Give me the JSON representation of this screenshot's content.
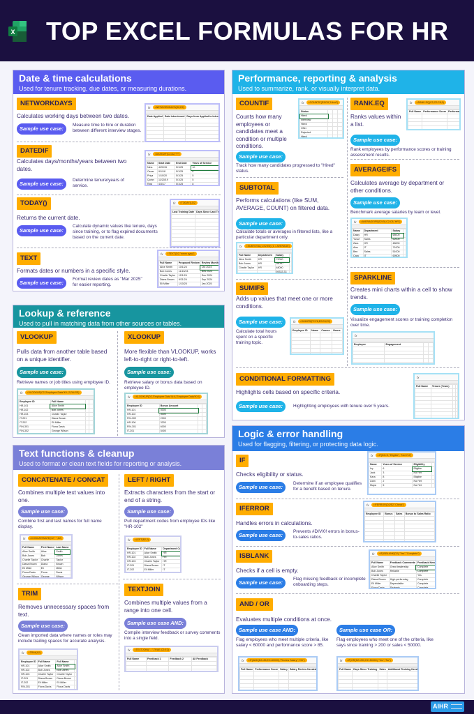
{
  "header": {
    "title": "TOP EXCEL FORMULAS FOR HR",
    "icon": "excel-logo-icon"
  },
  "footer": {
    "logo": "AIHR"
  },
  "colors": {
    "orange": "#ffad00",
    "navy": "#1b1040"
  },
  "sections": [
    {
      "title": "Date & time calculations",
      "subtitle": "Used for tenure tracking, due dates, or measuring durations.",
      "color": "#5a5cf0",
      "cards": [
        {
          "name": "NETWORKDAYS",
          "desc": "Calculates working days between two dates.",
          "pill": "Sample use case:",
          "use": "Measure time to hire or duration between different interview stages.",
          "sheet": {
            "formula": "=NETWORKDAYS(D2,E2)",
            "headers": [
              "Date Applied",
              "Date Interviewed",
              "Days from Applied to Interviewed"
            ],
            "rows": []
          }
        },
        {
          "name": "DATEDIF",
          "desc": "Calculates days/months/years between two dates.",
          "pill": "Sample use case:",
          "use": "Determine tenure/years of service.",
          "sheet": {
            "formula": "=DATEDIF(C2,D2,\"Y\")",
            "headers": [
              "Name",
              "Start Date",
              "End Date",
              "Years of Service"
            ],
            "rows": [
              [
                "Nina",
                "4/20/15",
                "5/1/25",
                "10"
              ],
              [
                "Oscar",
                "9/1/18",
                "5/1/25",
                "6"
              ],
              [
                "Priya",
                "1/10/20",
                "5/1/25",
                "5"
              ],
              [
                "Quinn",
                "11/20/19",
                "5/1/25",
                "5"
              ],
              [
                "Ravi",
                "4/3/17",
                "5/1/25",
                "8"
              ]
            ]
          }
        },
        {
          "name": "TODAY()",
          "desc": "Returns the current date.",
          "pill": "Sample use case:",
          "use": "Calculate dynamic values like tenure, days since training, or to flag expired documents based on the current date.",
          "sheet": {
            "formula": "=TODAY()-D2",
            "headers": [
              "Last Training Date",
              "Days Since Last Training"
            ],
            "rows": []
          }
        },
        {
          "name": "TEXT",
          "desc": "Formats dates or numbers in a specific style.",
          "pill": "Sample use case:",
          "use": "Format review dates as \"Mar 2025\" for easier reporting.",
          "sheet": {
            "formula": "=TEXT(D2,\"mmm yyyy\")",
            "headers": [
              "Full Name",
              "Proposed Review",
              "Review Month"
            ],
            "rows": [
              [
                "Alice Smith",
                "10/1/24",
                "Oct 2024"
              ],
              [
                "Bob Jones",
                "11/15/24",
                "Nov 2024"
              ],
              [
                "Charlie Taylor",
                "12/1/24",
                "Dec 2024"
              ],
              [
                "Diana Brown",
                "9/21/24",
                "Sep 2024"
              ],
              [
                "Eli Miller",
                "1/10/25",
                "Jan 2025"
              ],
              [
                "Fiona Davis",
                "8/30/24",
                "Aug 2024"
              ],
              [
                "George Wilson",
                "3/1/25",
                "Mar 2025"
              ]
            ]
          }
        }
      ]
    },
    {
      "title": "Lookup & reference",
      "subtitle": "Used to pull in matching data from other sources or tables.",
      "color": "#17959f",
      "cards": [
        {
          "name": "VLOOKUP",
          "desc": "Pulls data from another table based on a unique identifier.",
          "pill": "Sample use case:",
          "use": "Retrieve names or job titles using employee ID.",
          "sheet": {
            "formula": "=VLOOKUP(C2,'Employee Data'!K:L,2,FALSE)",
            "headers": [
              "Employee ID",
              "Full Name"
            ],
            "rows": [
              [
                "HR-101",
                "Alice Smith"
              ],
              [
                "HR-102",
                "Bob Jones"
              ],
              [
                "HR-103",
                "Charlie Taylor"
              ],
              [
                "IT-201",
                "Diana Brown"
              ],
              [
                "IT-202",
                "Eli Miller"
              ],
              [
                "FIN-301",
                "Fiona Davis"
              ],
              [
                "FIN-302",
                "George Wilson"
              ]
            ]
          }
        },
        {
          "name": "XLOOKUP",
          "desc": "More flexible than VLOOKUP, works left-to-right or right-to-left.",
          "pill": "Sample use case:",
          "use": "Retrieve salary or bonus data based on employee ID.",
          "sheet": {
            "formula": "=XLOOKUP(D2,'Employee Data'!A:A,'Employee Data'!K:K)",
            "headers": [
              "Employee ID",
              "Bonus Amount"
            ],
            "rows": [
              [
                "HR-101",
                "5000"
              ],
              [
                "HR-102",
                "3000"
              ],
              [
                "FIN-302",
                "2900"
              ],
              [
                "HR-106",
                "3200"
              ],
              [
                "FIN-301",
                "6000"
              ],
              [
                "IT-201",
                "5400"
              ],
              [
                "IT-202",
                "3100"
              ]
            ]
          }
        }
      ]
    },
    {
      "title": "Text functions & cleanup",
      "subtitle": "Used to format or clean text fields for reporting or analysis.",
      "color": "#7a80d8",
      "cards": [
        {
          "name": "CONCATENATE / CONCAT",
          "desc": "Combines multiple text values into one.",
          "pill": "Sample use case:",
          "use": "Combine first and last names for full name display.",
          "sheet": {
            "formula": "=CONCATENATE(C2,\" \",D2)",
            "headers": [
              "Full Name",
              "First Name",
              "Last Name"
            ],
            "rows": [
              [
                "Alice Smith",
                "Alice",
                "Smith"
              ],
              [
                "Bob Jones",
                "Bob",
                "Jones"
              ],
              [
                "Charlie Taylor",
                "Charlie",
                "Taylor"
              ],
              [
                "Diana Brown",
                "Diana",
                "Brown"
              ],
              [
                "Eli Miller",
                "Eli",
                "Miller"
              ],
              [
                "Fiona Davis",
                "Fiona",
                "Davis"
              ],
              [
                "George Wilson",
                "George",
                "Wilson"
              ]
            ]
          }
        },
        {
          "name": "LEFT / RIGHT",
          "desc": "Extracts characters from the start or end of a string.",
          "pill": "Sample use case:",
          "use": "Pull department codes from employee IDs like \"HR-102\"",
          "sheet": {
            "formula": "=LEFT(B2,2)",
            "headers": [
              "Employee ID",
              "Full Name",
              "Department Code"
            ],
            "rows": [
              [
                "HR-101",
                "Alice Smith",
                "HR"
              ],
              [
                "HR-102",
                "Bob Jones",
                "HR"
              ],
              [
                "HR-103",
                "Charlie Taylor",
                "HR"
              ],
              [
                "IT-201",
                "Diana Brown",
                "IT"
              ],
              [
                "IT-202",
                "Eli Miller",
                "IT"
              ],
              [
                "FIN-301",
                "Fiona Davis",
                "FI"
              ],
              [
                "FIN-302",
                "George Wilson",
                "FI"
              ]
            ]
          }
        },
        {
          "name": "TRIM",
          "desc": "Removes unnecessary spaces from text.",
          "pill": "Sample use case:",
          "use": "Clean imported data where names or roles may include trailing spaces for accurate analysis.",
          "sheet": {
            "formula": "=TRIM(A2)",
            "headers": [
              "Employee ID",
              "Full Name",
              "Full Name"
            ],
            "rows": [
              [
                "HR-101",
                "Alice Smith",
                "Alice Smith"
              ],
              [
                "HR-102",
                "Bob Jones",
                "Bob Jones"
              ],
              [
                "HR-103",
                "Charlie Taylor",
                "Charlie Taylor"
              ],
              [
                "IT-201",
                "Diana Brown",
                "Diana Brown"
              ],
              [
                "IT-202",
                "Eli Miller",
                "Eli Miller"
              ],
              [
                "FIN-301",
                "Fiona Davis",
                "Fiona Davis"
              ],
              [
                "FIN-302",
                "George Wilson",
                "George Wilson"
              ]
            ]
          }
        },
        {
          "name": "TEXTJOIN",
          "desc": "Combines multiple values from a range into one cell.",
          "pill": "Sample use case AND:",
          "use": "Compile interview feedback or survey comments into a single field.",
          "sheet": {
            "formula": "=TEXTJOIN(\" - \",TRUE,C2:E2)",
            "headers": [
              "Full Name",
              "Feedback 1",
              "Feedback 2",
              "All Feedback"
            ],
            "rows": []
          }
        }
      ]
    },
    {
      "title": "Performance, reporting & analysis",
      "subtitle": "Used to summarize, rank, or visually interpret data.",
      "color": "#1fb3e8",
      "cards": [
        {
          "name": "COUNTIF",
          "desc": "Counts how many employees or candidates meet a condition or multiple conditions.",
          "pill": "Sample use case:",
          "use": "Track how many candidates progressed to \"Hired\" status.",
          "sheet": {
            "formula": "=COUNTIF(D3:D9,\"Hired\")",
            "headers": [
              "Status"
            ],
            "rows": [
              [
                "Hired"
              ],
              [
                "Interview"
              ],
              [
                "Hired"
              ],
              [
                "Offer"
              ],
              [
                "Rejected"
              ],
              [
                "Hired"
              ],
              [
                "Interview"
              ],
              [
                "Hired"
              ]
            ]
          }
        },
        {
          "name": "SUBTOTAL",
          "desc": "Performs calculations (like SUM, AVERAGE, COUNT) on filtered data.",
          "pill": "Sample use case:",
          "use": "Calculate totals or averages in filtered lists, like a particular department only.",
          "sheet": {
            "formula": "=SUBTOTAL(1,E2:E6) (1 = AVERAGE)",
            "headers": [
              "Full Name",
              "Department",
              "Salary"
            ],
            "rows": [
              [
                "Alice Smith",
                "HR",
                "72000"
              ],
              [
                "Bob Jones",
                "HR",
                "58000"
              ],
              [
                "Charlie Taylor",
                "HR",
                "48000"
              ],
              [
                "",
                "",
                "59333.33"
              ]
            ]
          }
        },
        {
          "name": "SUMIFS",
          "desc": "Adds up values that meet one or more conditions.",
          "pill": "Sample use case:",
          "use": "Calculate total hours spent on a specific training topic.",
          "sheet": {
            "formula": "=SUMIFS(F2:F8,E2:E8,E2)",
            "headers": [
              "Employee ID",
              "Name",
              "Course",
              "Hours"
            ],
            "rows": []
          }
        },
        {
          "name": "RANK.EQ",
          "desc": "Ranks values within a list.",
          "pill": "Sample use case:",
          "use": "Rank employees by performance scores or training assessment results.",
          "sheet": {
            "formula": "=RANK.EQ(C2,C2:C8,0)",
            "headers": [
              "Full Name",
              "Performance Score",
              "Performance Ranking"
            ],
            "rows": []
          }
        },
        {
          "name": "AVERAGEIFS",
          "desc": "Calculates average by department or other conditions.",
          "pill": "Sample use case:",
          "use": "Benchmark average salaries by team or level.",
          "sheet": {
            "formula": "=AVERAGEIFS(E2:E8,C2:C8,\"HR\")",
            "headers": [
              "Name",
              "Department",
              "Salary"
            ],
            "rows": [
              [
                "Daisy",
                "HR",
                "68000"
              ],
              [
                "Yusuf",
                "Sales",
                "52000"
              ],
              [
                "Zara",
                "HR",
                "48000"
              ],
              [
                "Alex",
                "IT",
                "71000"
              ],
              [
                "Ben",
                "Sales",
                "51000"
              ],
              [
                "Cara",
                "IT",
                "69500"
              ],
              [
                "Drew",
                "HR",
                "67000"
              ],
              [
                "",
                "HR Salary Average",
                "61000"
              ]
            ]
          }
        },
        {
          "name": "SPARKLINE",
          "desc": "Creates mini charts within a cell to show trends.",
          "pill": "Sample use case:",
          "use": "Visualize engagement scores or training completion over time.",
          "sheet": {
            "formula": "",
            "headers": [
              "Employee",
              "Engagement"
            ],
            "rows": []
          }
        },
        {
          "name": "CONDITIONAL FORMATTING",
          "desc": "Highlights cells based on specific criteria.",
          "pill": "Sample use case:",
          "use": "Highlighting employees with tenure over 5 years.",
          "sheet": {
            "formula": "",
            "headers": [
              "Full Name",
              "Tenure (Years)"
            ],
            "rows": []
          }
        }
      ]
    },
    {
      "title": "Logic & error handling",
      "subtitle": "Used for flagging, filtering, or protecting data logic.",
      "color": "#2b7de6",
      "cards": [
        {
          "name": "IF",
          "desc": "Checks eligibility or status.",
          "pill": "Sample use case:",
          "use": "Determine if an employee qualifies for a benefit based on tenure.",
          "sheet": {
            "formula": "=IF(D2>5, \"Eligible\", \"Not Yet\")",
            "headers": [
              "Name",
              "Years of Service",
              "Eligibility"
            ],
            "rows": [
              [
                "Ivy",
                "6",
                "Eligible"
              ],
              [
                "Jack",
                "3",
                "Not Yet"
              ],
              [
                "Kara",
                "8",
                "Eligible"
              ],
              [
                "Liam",
                "2",
                "Not Yet"
              ],
              [
                "Maya",
                "5",
                "Not Yet"
              ]
            ]
          }
        },
        {
          "name": "IFERROR",
          "desc": "Handles errors in calculations.",
          "pill": "Sample use case:",
          "use": "Prevents #DIV/0! errors in bonus-to-sales ratios.",
          "sheet": {
            "formula": "=IFERROR(D2/E2,\"Check\")",
            "headers": [
              "Employee ID",
              "Bonus",
              "Sales",
              "Bonus to Sales Ratio"
            ],
            "rows": []
          }
        },
        {
          "name": "ISBLANK",
          "desc": "Checks if a cell is empty.",
          "pill": "Sample use case:",
          "use": "Flag missing feedback or incomplete onboarding steps.",
          "sheet": {
            "formula": "=IF(ISBLANK(D2),\"Yes\",\"Complete\")",
            "headers": [
              "Full Name",
              "Feedback Comments",
              "Feedback Needed?"
            ],
            "rows": [
              [
                "Alice Smith",
                "Great leadership",
                "Complete"
              ],
              [
                "Bob Jones",
                "Reliable",
                "Complete"
              ],
              [
                "Charlie Taylor",
                "",
                "Yes"
              ],
              [
                "Diana Brown",
                "High-performing",
                "Complete"
              ],
              [
                "Eli Miller",
                "Dependable",
                "Complete"
              ],
              [
                "Fiona Davis",
                "Strategic",
                "Complete"
              ],
              [
                "George Wilson",
                "Efficient",
                "Complete"
              ]
            ]
          }
        },
        {
          "name": "AND / OR",
          "desc": "Evaluates multiple conditions at once.",
          "pill": "Sample use case AND:",
          "use": "Flag employees who meet multiple criteria, like salary < 60000 and performance score > 85.",
          "sheet": {
            "formula": "=IF(AND(D2>85,E2<60000),\"Review Salary\",\"OK\")",
            "headers": [
              "Full Name",
              "Performance Score",
              "Salary",
              "Salary Review Needed?"
            ],
            "rows": []
          },
          "pill2": "Sample use case OR:",
          "use2": "Flag employees who meet one of the criteria, like says since training > 200 or sales < 50000.",
          "sheet2": {
            "formula": "=IF(OR(D2>200,E2<50000),\"Yes\",\"No\")",
            "headers": [
              "Full Name",
              "Days Since Training",
              "Sales",
              "Additional Training Needed?"
            ],
            "rows": []
          }
        }
      ]
    }
  ]
}
